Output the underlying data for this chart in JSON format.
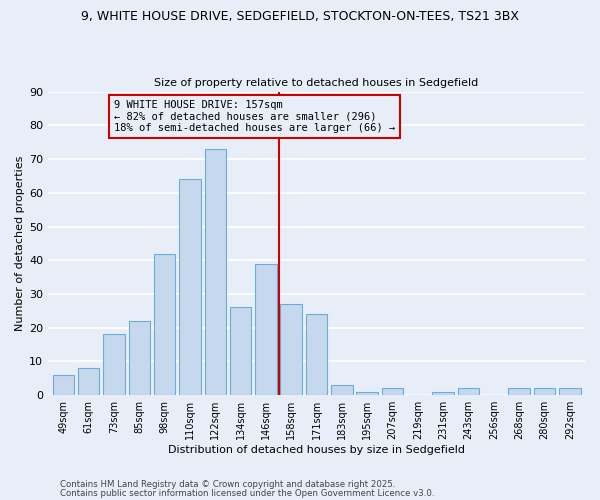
{
  "title_line1": "9, WHITE HOUSE DRIVE, SEDGEFIELD, STOCKTON-ON-TEES, TS21 3BX",
  "title_line2": "Size of property relative to detached houses in Sedgefield",
  "xlabel": "Distribution of detached houses by size in Sedgefield",
  "ylabel": "Number of detached properties",
  "categories": [
    "49sqm",
    "61sqm",
    "73sqm",
    "85sqm",
    "98sqm",
    "110sqm",
    "122sqm",
    "134sqm",
    "146sqm",
    "158sqm",
    "171sqm",
    "183sqm",
    "195sqm",
    "207sqm",
    "219sqm",
    "231sqm",
    "243sqm",
    "256sqm",
    "268sqm",
    "280sqm",
    "292sqm"
  ],
  "values": [
    6,
    8,
    18,
    22,
    42,
    64,
    73,
    26,
    39,
    27,
    24,
    3,
    1,
    2,
    0,
    1,
    2,
    0,
    2,
    2,
    2
  ],
  "bar_color": "#c5d8ed",
  "bar_edge_color": "#6aaed6",
  "background_color": "#e8eef8",
  "grid_color": "#ffffff",
  "vline_x_idx": 9,
  "vline_color": "#cc0000",
  "annotation_line1": "9 WHITE HOUSE DRIVE: 157sqm",
  "annotation_line2": "← 82% of detached houses are smaller (296)",
  "annotation_line3": "18% of semi-detached houses are larger (66) →",
  "annotation_box_color": "#cc0000",
  "ylim": [
    0,
    90
  ],
  "yticks": [
    0,
    10,
    20,
    30,
    40,
    50,
    60,
    70,
    80,
    90
  ],
  "footer_line1": "Contains HM Land Registry data © Crown copyright and database right 2025.",
  "footer_line2": "Contains public sector information licensed under the Open Government Licence v3.0."
}
